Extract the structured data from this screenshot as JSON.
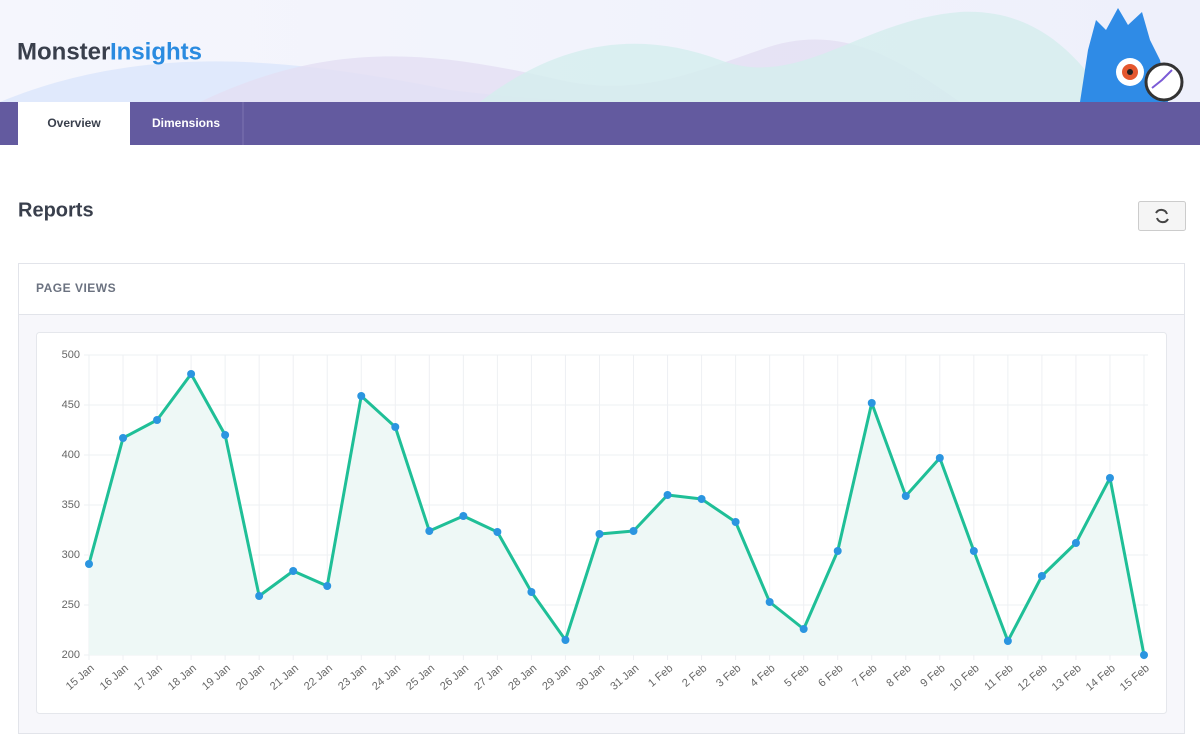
{
  "header": {
    "logo_part1": "Monster",
    "logo_part2": "Insights"
  },
  "tabs": [
    "Overview",
    "Dimensions"
  ],
  "page_title": "Reports",
  "panel_title": "PAGE VIEWS",
  "chart_data": {
    "type": "line",
    "categories": [
      "15 Jan",
      "16 Jan",
      "17 Jan",
      "18 Jan",
      "19 Jan",
      "20 Jan",
      "21 Jan",
      "22 Jan",
      "23 Jan",
      "24 Jan",
      "25 Jan",
      "26 Jan",
      "27 Jan",
      "28 Jan",
      "29 Jan",
      "30 Jan",
      "31 Jan",
      "1 Feb",
      "2 Feb",
      "3 Feb",
      "4 Feb",
      "5 Feb",
      "6 Feb",
      "7 Feb",
      "8 Feb",
      "9 Feb",
      "10 Feb",
      "11 Feb",
      "12 Feb",
      "13 Feb",
      "14 Feb",
      "15 Feb"
    ],
    "values": [
      291,
      417,
      435,
      481,
      420,
      259,
      284,
      269,
      459,
      428,
      324,
      339,
      323,
      263,
      215,
      321,
      324,
      360,
      356,
      333,
      253,
      226,
      304,
      452,
      359,
      397,
      304,
      214,
      279,
      312,
      377,
      200
    ],
    "color": "#1fbf97",
    "point_color": "#2b95e0",
    "fill_color": "#eef8f6",
    "ylim": [
      200,
      500
    ],
    "yticks": [
      200,
      250,
      300,
      350,
      400,
      450,
      500
    ],
    "grid": true
  }
}
